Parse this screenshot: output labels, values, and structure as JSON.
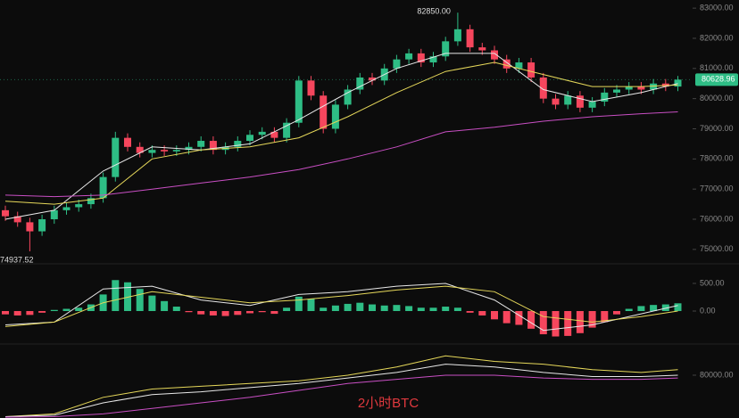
{
  "chart_data": {
    "type": "candlestick",
    "caption": "2小时BTC",
    "up_color": "#2ebd85",
    "down_color": "#f6465d",
    "ylim": [
      74700,
      83270
    ],
    "yticks": [
      {
        "value": 75000,
        "label": "75000.00"
      },
      {
        "value": 76000,
        "label": "76000.00"
      },
      {
        "value": 77000,
        "label": "77000.00"
      },
      {
        "value": 78000,
        "label": "78000.00"
      },
      {
        "value": 79000,
        "label": "79000.00"
      },
      {
        "value": 80000,
        "label": "80000.00"
      },
      {
        "value": 81000,
        "label": "81000.00"
      },
      {
        "value": 82000,
        "label": "82000.00"
      },
      {
        "value": 83000,
        "label": "83000.00"
      }
    ],
    "last_price": 80628.96,
    "annotations": {
      "high": "82850.00",
      "low": "74937.52"
    },
    "ohlc": [
      [
        76300,
        76450,
        75950,
        76100
      ],
      [
        76100,
        76250,
        75750,
        75900
      ],
      [
        75900,
        76050,
        74937.52,
        75600
      ],
      [
        75600,
        76150,
        75450,
        76000
      ],
      [
        76000,
        76450,
        75850,
        76300
      ],
      [
        76300,
        76550,
        76150,
        76400
      ],
      [
        76400,
        76650,
        76250,
        76500
      ],
      [
        76500,
        76850,
        76350,
        76700
      ],
      [
        76700,
        77550,
        76550,
        77400
      ],
      [
        77400,
        78900,
        77250,
        78700
      ],
      [
        78700,
        78850,
        78250,
        78400
      ],
      [
        78400,
        78550,
        78050,
        78200
      ],
      [
        78200,
        78450,
        78050,
        78300
      ],
      [
        78300,
        78450,
        78100,
        78250
      ],
      [
        78250,
        78450,
        78100,
        78300
      ],
      [
        78300,
        78550,
        78150,
        78400
      ],
      [
        78400,
        78750,
        78250,
        78600
      ],
      [
        78600,
        78750,
        78150,
        78300
      ],
      [
        78300,
        78550,
        78150,
        78400
      ],
      [
        78400,
        78750,
        78250,
        78600
      ],
      [
        78600,
        78950,
        78450,
        78800
      ],
      [
        78800,
        79050,
        78650,
        78900
      ],
      [
        78900,
        79050,
        78550,
        78700
      ],
      [
        78700,
        79350,
        78550,
        79200
      ],
      [
        79200,
        80750,
        79050,
        80600
      ],
      [
        80600,
        80750,
        79950,
        80100
      ],
      [
        80100,
        80250,
        78850,
        79000
      ],
      [
        79000,
        79950,
        78850,
        79800
      ],
      [
        79800,
        80450,
        79650,
        80300
      ],
      [
        80300,
        80850,
        80150,
        80700
      ],
      [
        80700,
        80850,
        80450,
        80600
      ],
      [
        80600,
        81150,
        80450,
        81000
      ],
      [
        81000,
        81450,
        80850,
        81300
      ],
      [
        81300,
        81650,
        81150,
        81500
      ],
      [
        81500,
        81650,
        81050,
        81200
      ],
      [
        81200,
        81550,
        81050,
        81400
      ],
      [
        81400,
        82050,
        81250,
        81900
      ],
      [
        81900,
        82850,
        81750,
        82300
      ],
      [
        82300,
        82450,
        81550,
        81700
      ],
      [
        81700,
        81850,
        81450,
        81600
      ],
      [
        81600,
        81750,
        81150,
        81300
      ],
      [
        81300,
        81450,
        80850,
        81000
      ],
      [
        81000,
        81350,
        80850,
        81200
      ],
      [
        81200,
        81350,
        80550,
        80700
      ],
      [
        80700,
        80850,
        79850,
        80000
      ],
      [
        80000,
        80150,
        79650,
        79800
      ],
      [
        79800,
        80250,
        79650,
        80100
      ],
      [
        80100,
        80250,
        79550,
        79700
      ],
      [
        79700,
        80050,
        79550,
        79900
      ],
      [
        79900,
        80350,
        79750,
        80200
      ],
      [
        80200,
        80450,
        80050,
        80300
      ],
      [
        80300,
        80550,
        80150,
        80400
      ],
      [
        80400,
        80550,
        80150,
        80300
      ],
      [
        80300,
        80650,
        80150,
        80500
      ],
      [
        80500,
        80650,
        80250,
        80400
      ],
      [
        80400,
        80750,
        80250,
        80629
      ]
    ],
    "ma_x": [
      0,
      4,
      8,
      12,
      16,
      20,
      24,
      28,
      32,
      36,
      40,
      44,
      48,
      52,
      55
    ],
    "ma": [
      {
        "color": "#e8e8e8",
        "values": [
          76000,
          76300,
          77600,
          78400,
          78300,
          78500,
          79300,
          80200,
          81000,
          81500,
          81500,
          80300,
          79900,
          80200,
          80500
        ]
      },
      {
        "color": "#e6d85a",
        "values": [
          76600,
          76500,
          76700,
          78000,
          78300,
          78400,
          78700,
          79400,
          80200,
          80900,
          81200,
          80800,
          80400,
          80400,
          80450
        ]
      },
      {
        "color": "#c94fc4",
        "values": [
          76800,
          76750,
          76800,
          77000,
          77200,
          77400,
          77650,
          78000,
          78400,
          78900,
          79050,
          79250,
          79400,
          79500,
          79560
        ]
      }
    ],
    "macd": {
      "ylim": [
        -500,
        790
      ],
      "yticks": [
        {
          "value": 500,
          "label": "500.00"
        },
        {
          "value": 0,
          "label": "0.00"
        }
      ],
      "hist": [
        -60,
        -80,
        -70,
        -30,
        20,
        40,
        60,
        120,
        300,
        560,
        520,
        400,
        280,
        180,
        80,
        -20,
        -60,
        -80,
        -90,
        -70,
        -40,
        -20,
        -50,
        60,
        260,
        220,
        60,
        100,
        130,
        150,
        120,
        100,
        110,
        90,
        60,
        60,
        80,
        60,
        -30,
        -80,
        -150,
        -220,
        -250,
        -320,
        -420,
        -460,
        -450,
        -400,
        -300,
        -200,
        -60,
        40,
        90,
        110,
        120,
        140
      ],
      "lines": [
        {
          "color": "#e8e8e8",
          "values": [
            -250,
            -200,
            400,
            450,
            200,
            100,
            300,
            350,
            450,
            500,
            200,
            -350,
            -250,
            -50,
            100
          ]
        },
        {
          "color": "#e6d85a",
          "values": [
            -280,
            -200,
            150,
            350,
            250,
            150,
            200,
            280,
            380,
            450,
            350,
            -100,
            -200,
            -100,
            0
          ]
        }
      ]
    },
    "lower": {
      "ylim": [
        78450,
        81000
      ],
      "yticks": [
        {
          "value": 80000,
          "label": "80000.00"
        }
      ],
      "lines": [
        {
          "color": "#e6d85a",
          "values": [
            78500,
            78600,
            79200,
            79500,
            79600,
            79700,
            79800,
            80000,
            80300,
            80700,
            80500,
            80400,
            80200,
            80100,
            80200
          ]
        },
        {
          "color": "#e8e8e8",
          "values": [
            78500,
            78550,
            79000,
            79300,
            79400,
            79550,
            79700,
            79900,
            80100,
            80400,
            80300,
            80100,
            79950,
            79950,
            80000
          ]
        },
        {
          "color": "#c94fc4",
          "values": [
            78480,
            78500,
            78600,
            78800,
            79000,
            79200,
            79450,
            79700,
            79850,
            80000,
            80000,
            79900,
            79850,
            79850,
            79900
          ]
        }
      ]
    }
  }
}
